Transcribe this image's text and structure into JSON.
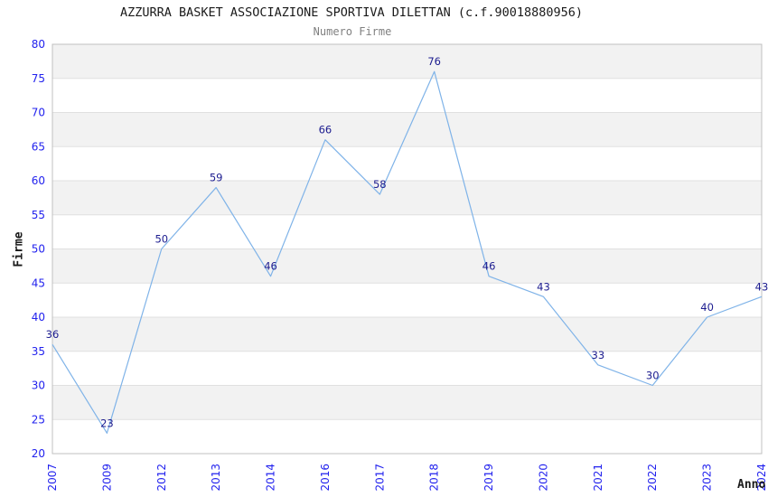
{
  "chart_data": {
    "type": "line",
    "title": "AZZURRA BASKET ASSOCIAZIONE SPORTIVA DILETTAN (c.f.90018880956)",
    "subtitle": "Numero Firme",
    "xlabel": "Anno",
    "ylabel": "Firme",
    "categories": [
      "2007",
      "2009",
      "2012",
      "2013",
      "2014",
      "2016",
      "2017",
      "2018",
      "2019",
      "2020",
      "2021",
      "2022",
      "2023",
      "2024"
    ],
    "values": [
      36,
      23,
      50,
      59,
      46,
      66,
      58,
      76,
      46,
      43,
      33,
      30,
      40,
      43
    ],
    "ylim": [
      20,
      80
    ],
    "ytick_step": 5,
    "yticks": [
      20,
      25,
      30,
      35,
      40,
      45,
      50,
      55,
      60,
      65,
      70,
      75,
      80
    ],
    "legend": "none",
    "grid": "horizontal-bands",
    "colors": {
      "line": "#7fb3e8",
      "data_label": "#1c1c8f",
      "tick_label": "#2222ee",
      "band_fill": "#f2f2f2",
      "band_fill_alt": "#ffffff",
      "grid_line": "#e0e0e0",
      "plot_border": "#c0c0c0",
      "title": "#1a1a1a",
      "subtitle": "#808080",
      "axis_title": "#1a1a1a",
      "background": "#ffffff"
    }
  }
}
